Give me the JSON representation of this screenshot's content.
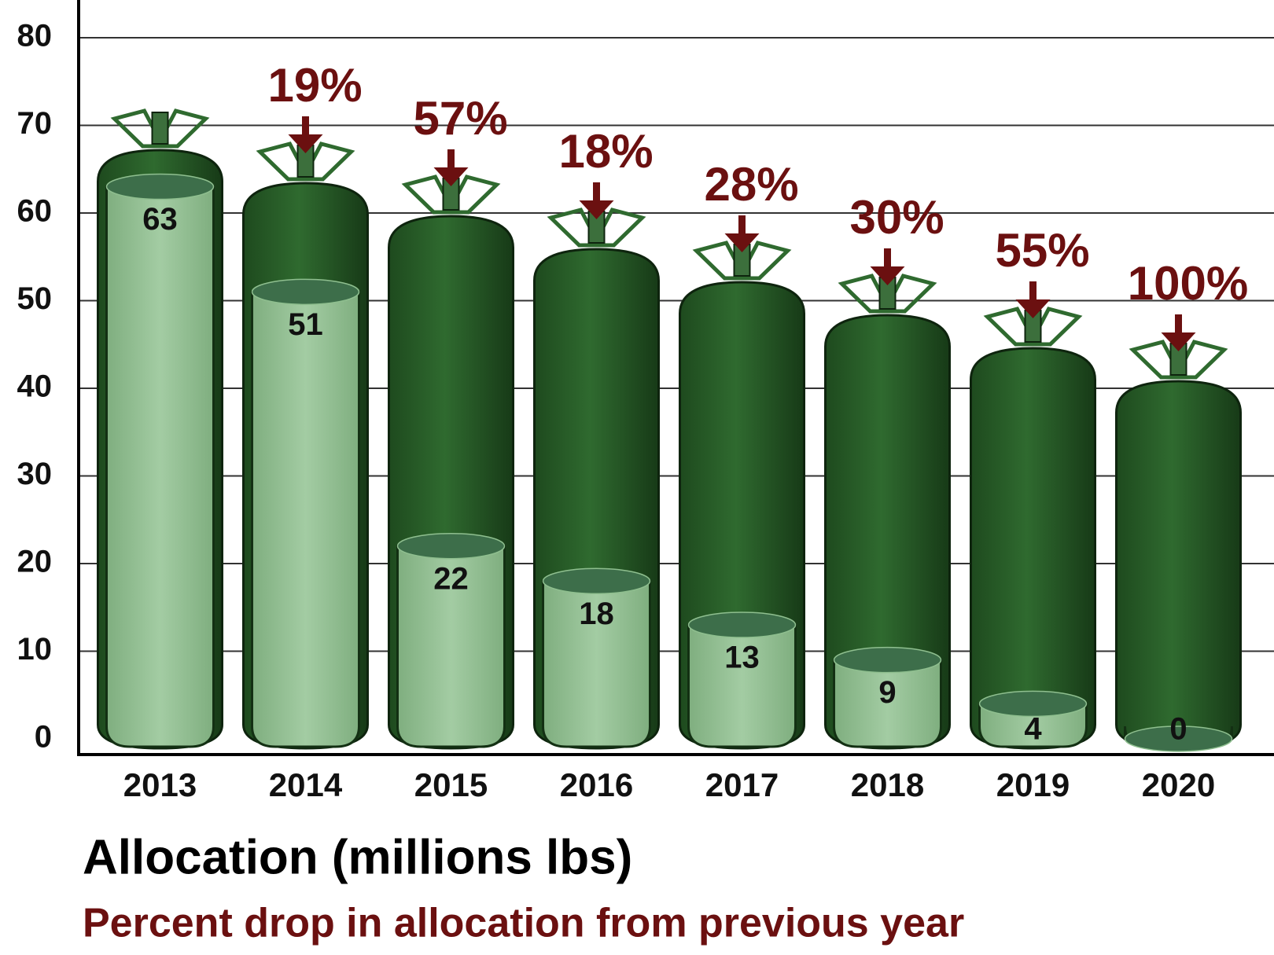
{
  "chart_data": {
    "type": "bar",
    "categories": [
      "2013",
      "2014",
      "2015",
      "2016",
      "2017",
      "2018",
      "2019",
      "2020"
    ],
    "series": [
      {
        "name": "Allocation (millions lbs)",
        "color": "#93bf93",
        "values": [
          63,
          51,
          22,
          18,
          13,
          9,
          4,
          0
        ]
      }
    ],
    "percent_drop": {
      "name": "Percent drop in allocation from previous year",
      "color": "#6b1010",
      "values": [
        null,
        19,
        57,
        18,
        28,
        30,
        55,
        100
      ],
      "value_labels": [
        null,
        "19%",
        "57%",
        "18%",
        "28%",
        "30%",
        "55%",
        "100%"
      ]
    },
    "ylim": [
      0,
      80
    ],
    "yticks": [
      0,
      10,
      20,
      30,
      40,
      50,
      60,
      70,
      80
    ],
    "grid": true
  }
}
